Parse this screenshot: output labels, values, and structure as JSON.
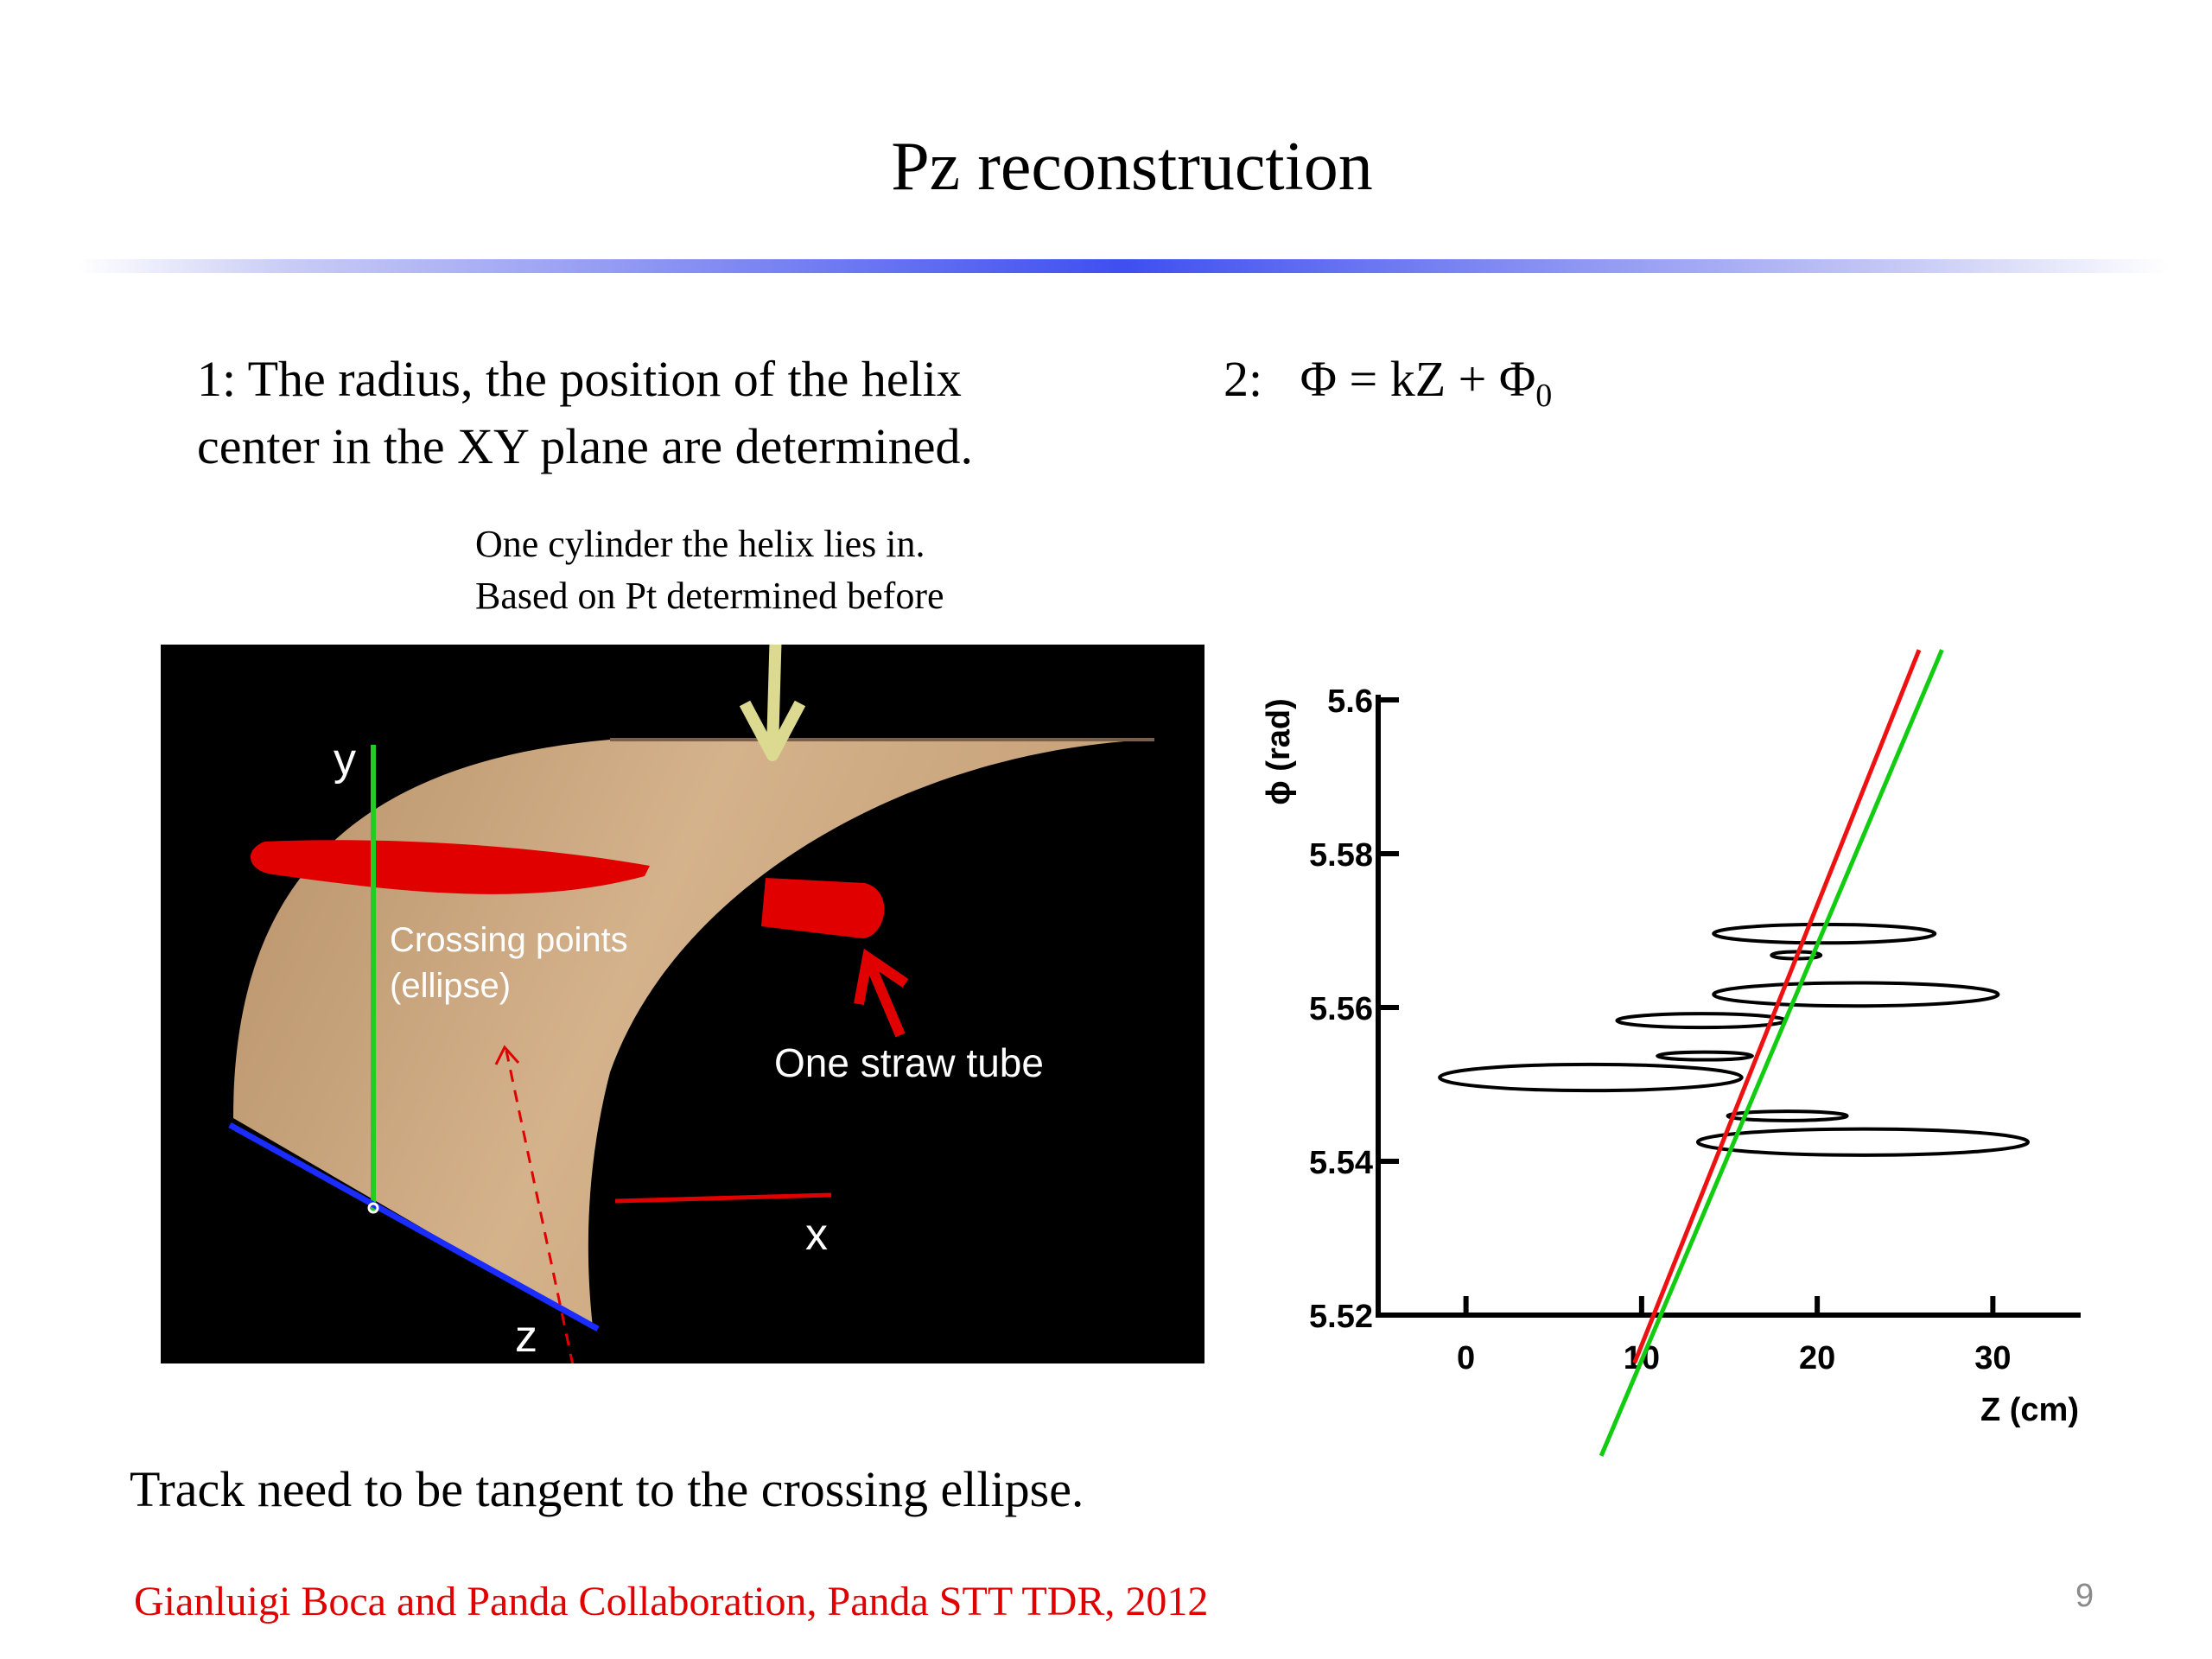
{
  "slide": {
    "title": "Pz reconstruction",
    "point1": {
      "line1": "1:  The radius, the position of the helix",
      "line2": "center in the XY plane are determined."
    },
    "point2": {
      "prefix": "2:",
      "equation": "Φ = kZ + Φ",
      "subscript": "0"
    },
    "annotation": {
      "line1": "One cylinder the helix lies in.",
      "line2": "Based on Pt determined before"
    },
    "bottom_line": "Track need to be tangent to the crossing ellipse.",
    "citation": "Gianluigi Boca and Panda Collaboration, Panda STT TDR, 2012",
    "slide_number": "9",
    "colors": {
      "accent_rule": "#3f4ff0",
      "citation": "#e00000",
      "cylinder": "#c9a57f",
      "straw": "#e00000"
    }
  },
  "figure_3d": {
    "axis_labels": {
      "y": "y",
      "x": "x",
      "z": "z"
    },
    "crossing_label_line1": "Crossing points",
    "crossing_label_line2": "(ellipse)",
    "straw_label": "One straw tube"
  },
  "chart_data": {
    "type": "scatter",
    "xlabel": "Z (cm)",
    "ylabel": "ϕ (rad)",
    "xlim": [
      -5,
      35
    ],
    "ylim": [
      5.52,
      5.6
    ],
    "xticks": [
      0,
      10,
      20,
      30
    ],
    "yticks": [
      5.52,
      5.54,
      5.56,
      5.58,
      5.6
    ],
    "ytick_labels": [
      "5.52",
      "5.54",
      "5.56",
      "5.58",
      "5.6"
    ],
    "grid": false,
    "ellipses": [
      {
        "cx": 20.4,
        "cy": 5.5696,
        "rx": 6.3,
        "ry": 0.0012
      },
      {
        "cx": 18.8,
        "cy": 5.5668,
        "rx": 1.4,
        "ry": 0.0004
      },
      {
        "cx": 22.2,
        "cy": 5.5617,
        "rx": 8.1,
        "ry": 0.0015
      },
      {
        "cx": 13.4,
        "cy": 5.5583,
        "rx": 4.8,
        "ry": 0.0009
      },
      {
        "cx": 13.6,
        "cy": 5.5537,
        "rx": 2.7,
        "ry": 0.0005
      },
      {
        "cx": 7.1,
        "cy": 5.5509,
        "rx": 8.6,
        "ry": 0.0017
      },
      {
        "cx": 18.3,
        "cy": 5.5459,
        "rx": 3.4,
        "ry": 0.0006
      },
      {
        "cx": 22.6,
        "cy": 5.5425,
        "rx": 9.4,
        "ry": 0.0017
      }
    ],
    "lines": [
      {
        "color": "#ee1111",
        "x0": 9.6,
        "y0": 5.5138,
        "x1": 25.8,
        "y1": 5.6065
      },
      {
        "color": "#11cc11",
        "x0": 7.7,
        "y0": 5.5017,
        "x1": 27.1,
        "y1": 5.6065
      }
    ]
  }
}
